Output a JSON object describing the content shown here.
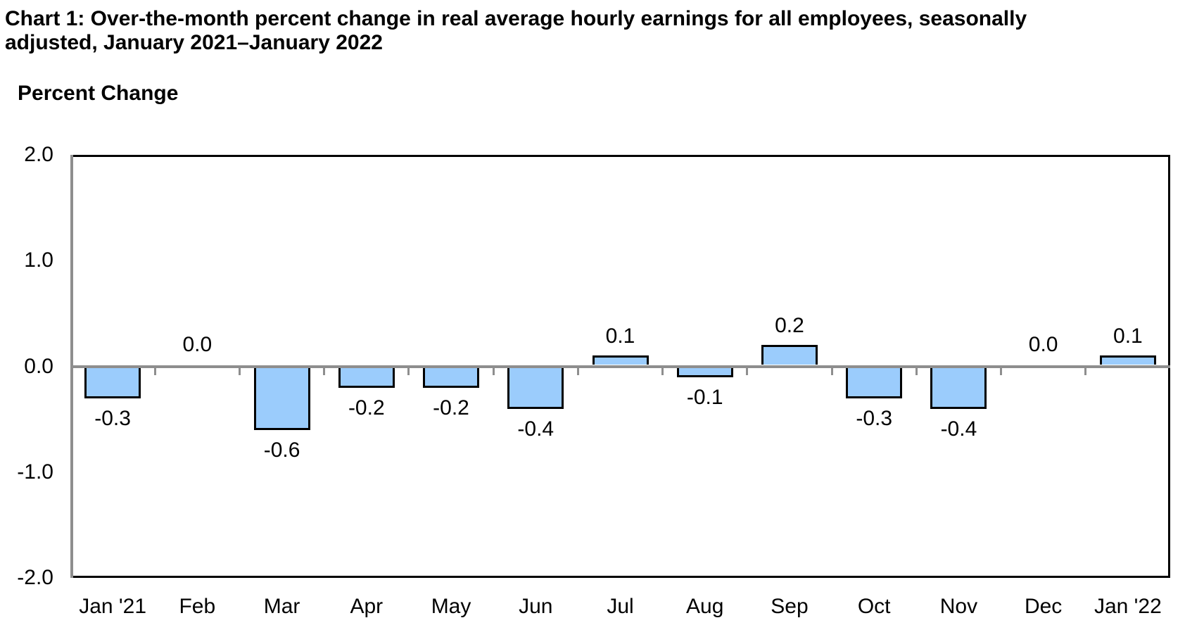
{
  "title_line1": "Chart 1: Over-the-month percent change in real average hourly earnings for all employees, seasonally",
  "title_line2": "adjusted, January 2021–January 2022",
  "chart_data": {
    "type": "bar",
    "title": "Chart 1: Over-the-month percent change in real average hourly earnings for all employees, seasonally adjusted, January 2021–January 2022",
    "ylabel": "Percent Change",
    "xlabel": "",
    "categories": [
      "Jan '21",
      "Feb",
      "Mar",
      "Apr",
      "May",
      "Jun",
      "Jul",
      "Aug",
      "Sep",
      "Oct",
      "Nov",
      "Dec",
      "Jan '22"
    ],
    "values": [
      -0.3,
      0.0,
      -0.6,
      -0.2,
      -0.2,
      -0.4,
      0.1,
      -0.1,
      0.2,
      -0.3,
      -0.4,
      0.0,
      0.1
    ],
    "bar_labels": [
      "-0.3",
      "0.0",
      "-0.6",
      "-0.2",
      "-0.2",
      "-0.4",
      "0.1",
      "-0.1",
      "0.2",
      "-0.3",
      "-0.4",
      "0.0",
      "0.1"
    ],
    "ylim": [
      -2.0,
      2.0
    ],
    "ytick_labels": [
      "2.0",
      "1.0",
      "0.0",
      "-1.0",
      "-2.0"
    ],
    "grid": "zero-line-only",
    "legend": "none",
    "colors": {
      "bar_fill": "#9BCCFC",
      "bar_border": "#000000",
      "axis_gray": "#8E8E8E",
      "frame_black": "#000000",
      "text": "#000000",
      "background": "#FFFFFF"
    }
  }
}
